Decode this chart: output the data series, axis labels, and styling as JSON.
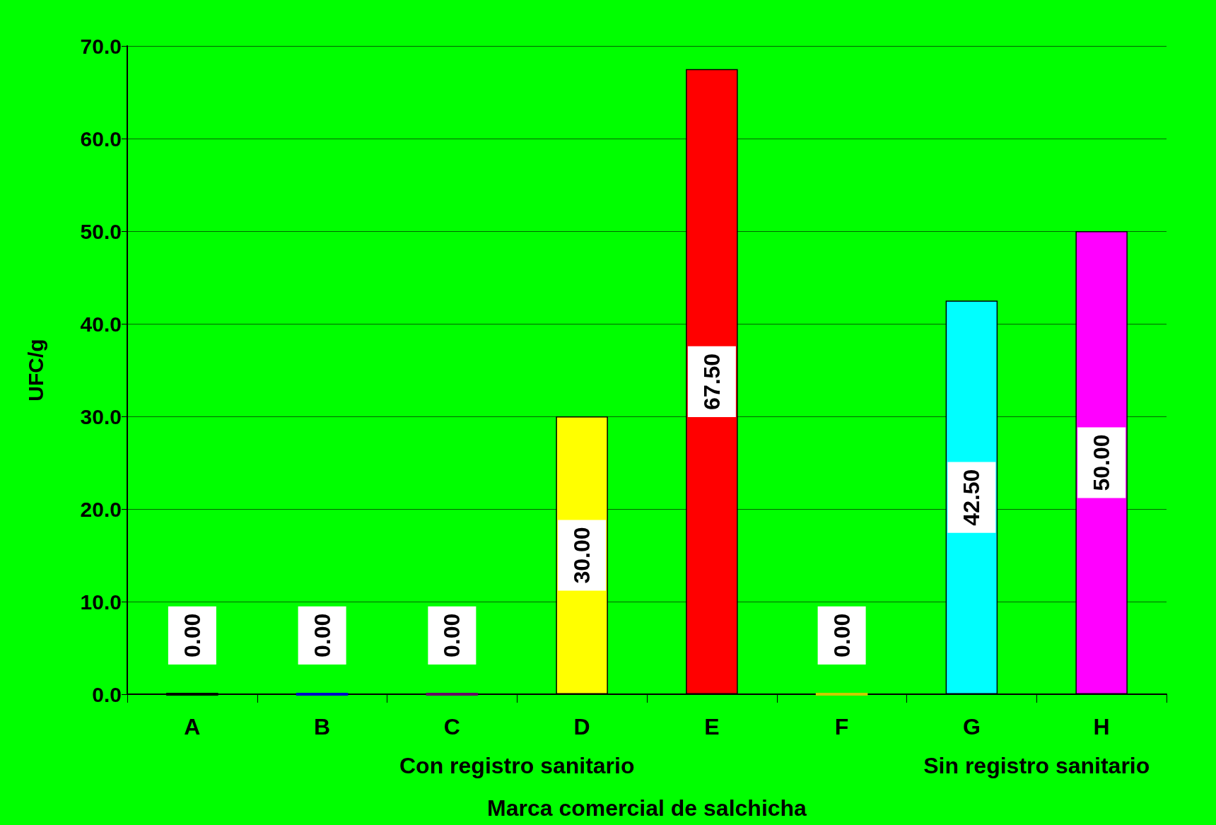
{
  "chart_data": {
    "type": "bar",
    "xlabel": "Marca comercial de salchicha",
    "ylabel": "UFC/g",
    "categories": [
      "A",
      "B",
      "C",
      "D",
      "E",
      "F",
      "G",
      "H"
    ],
    "values": [
      0,
      0,
      0,
      30,
      67.5,
      0,
      42.5,
      50
    ],
    "colors": [
      "#000000",
      "#0000cc",
      "#660066",
      "#ffff00",
      "#ff0000",
      "#cccc00",
      "#00ffff",
      "#ff00ff"
    ],
    "value_labels": [
      "0.00",
      "0.00",
      "0.00",
      "30.00",
      "67.50",
      "0.00",
      "42.50",
      "50.00"
    ],
    "ylim": [
      0,
      70
    ],
    "yticks": [
      {
        "value": 0,
        "label": "0.0"
      },
      {
        "value": 10,
        "label": "10.0"
      },
      {
        "value": 20,
        "label": "20.0"
      },
      {
        "value": 30,
        "label": "30.0"
      },
      {
        "value": 40,
        "label": "40.0"
      },
      {
        "value": 50,
        "label": "50.0"
      },
      {
        "value": 60,
        "label": "60.0"
      },
      {
        "value": 70,
        "label": "70.0"
      }
    ],
    "grid": "y",
    "annotations": [
      "Con registro sanitario",
      "Sin registro sanitario"
    ]
  }
}
